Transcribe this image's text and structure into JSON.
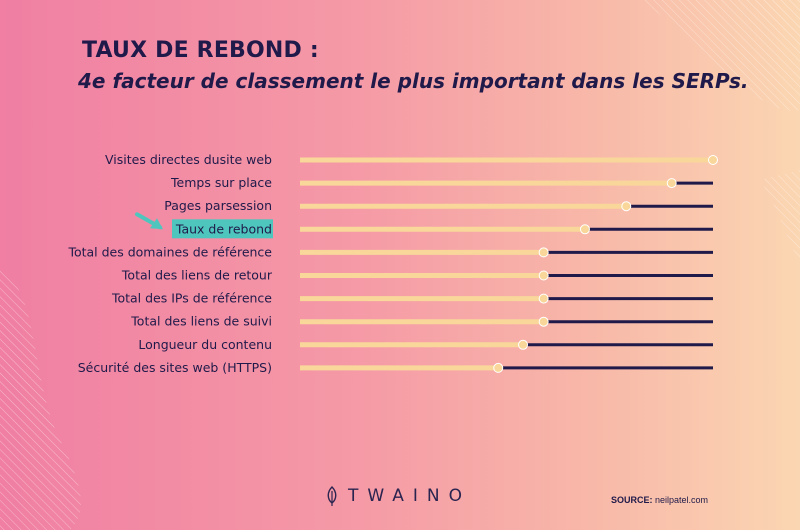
{
  "header": {
    "title": "TAUX DE REBOND :",
    "subtitle": "4e facteur de classement le plus important dans les SERPs."
  },
  "footer": {
    "logo_text": "TWAINO",
    "source_label": "SOURCE:",
    "source_value": " neilpatel.com"
  },
  "colors": {
    "background_start": "#f07fa3",
    "background_end": "#fbd6b2",
    "bar_fill": "#f9d79a",
    "track": "#1f1a4a",
    "highlight": "#4fc6bd",
    "text": "#1f1a4a"
  },
  "chart_data": {
    "type": "bar",
    "orientation": "horizontal",
    "categories": [
      "Visites directes dusite web",
      "Temps sur place",
      "Pages parsession",
      "Taux de rebond",
      "Total des domaines de référence",
      "Total des liens de retour",
      "Total des IPs de référence",
      "Total des liens de suivi",
      "Longueur du contenu",
      "Sécurité des sites web (HTTPS)"
    ],
    "values": [
      1.0,
      0.9,
      0.79,
      0.69,
      0.59,
      0.59,
      0.59,
      0.59,
      0.54,
      0.48
    ],
    "highlighted_category": "Taux de rebond",
    "xlim": [
      0,
      1
    ],
    "grid": false,
    "legend": "none"
  }
}
